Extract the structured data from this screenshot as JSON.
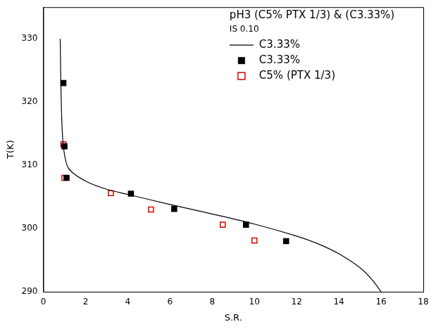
{
  "chart_data": {
    "type": "scatter",
    "title": "pH3 (C5% PTX 1/3) & (C3.33%)",
    "subtitle": "IS 0.10",
    "x_label": "S.R.",
    "y_label": "T(K)",
    "xlim": [
      0,
      18
    ],
    "xticks": [
      0,
      2,
      4,
      6,
      8,
      10,
      12,
      14,
      16,
      18
    ],
    "ylim": [
      290,
      335
    ],
    "yticks": [
      290,
      300,
      310,
      320,
      330
    ],
    "grid": false,
    "legend": "top right",
    "series": [
      {
        "name": "C3.33%",
        "type": "line",
        "color": "#000000",
        "line_style": "solid",
        "x": [
          0.8,
          0.85,
          0.95,
          1.2,
          2,
          3,
          4,
          6,
          8,
          10,
          12,
          13,
          14,
          15,
          15.6,
          16
        ],
        "values": [
          330,
          320,
          313,
          309.5,
          307.5,
          306.2,
          305.4,
          303.8,
          302.3,
          300.7,
          298.8,
          297.6,
          296,
          293.8,
          291.8,
          290
        ]
      },
      {
        "name": "C3.33%",
        "type": "scatter",
        "color": "#000000",
        "marker": "square",
        "x": [
          0.95,
          1.0,
          1.1,
          4.15,
          6.2,
          9.6,
          11.5
        ],
        "values": [
          323.0,
          313.0,
          308.0,
          305.5,
          303.1,
          300.6,
          298.0
        ]
      },
      {
        "name": "C5% (PTX 1/3)",
        "type": "scatter",
        "color": "#dd0000",
        "marker": "open_square",
        "x": [
          0.95,
          1.0,
          3.2,
          5.1,
          8.5,
          10.0
        ],
        "values": [
          313.3,
          308.0,
          305.6,
          303.0,
          300.6,
          298.1
        ]
      }
    ]
  }
}
